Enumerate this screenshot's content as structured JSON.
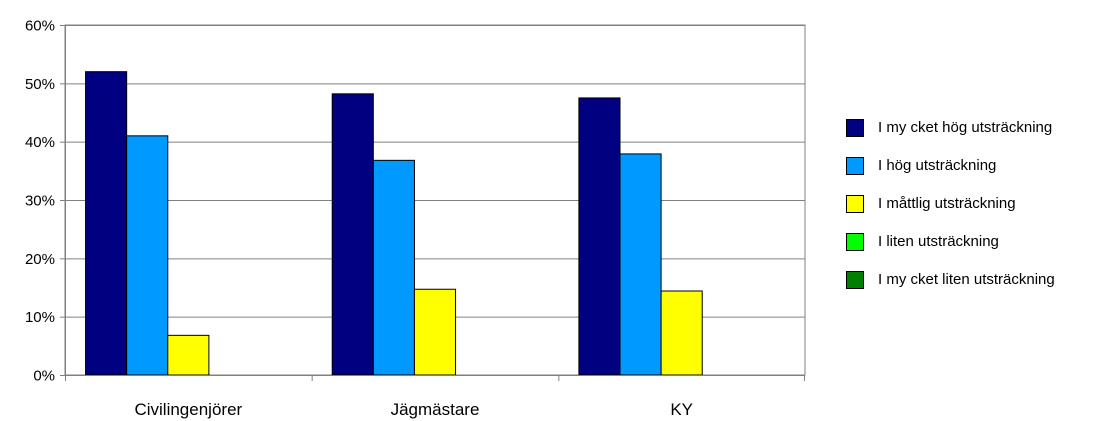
{
  "chart_data": {
    "type": "bar",
    "categories": [
      "Civilingenjörer",
      "Jägmästare",
      "KY"
    ],
    "series": [
      {
        "name": "I my cket hög utsträckning",
        "color": "#000080",
        "values": [
          52,
          48.2,
          47.5
        ]
      },
      {
        "name": "I hög utsträckning",
        "color": "#0099FF",
        "values": [
          41,
          36.8,
          37.9
        ]
      },
      {
        "name": "I måttlig utsträckning",
        "color": "#FFFF00",
        "values": [
          6.8,
          14.7,
          14.4
        ]
      },
      {
        "name": "I liten utsträckning",
        "color": "#00FF00",
        "values": [
          0,
          0,
          0
        ]
      },
      {
        "name": "I my cket liten utsträckning",
        "color": "#008000",
        "values": [
          0,
          0,
          0
        ]
      }
    ],
    "y_ticks": [
      "0%",
      "10%",
      "20%",
      "30%",
      "40%",
      "50%",
      "60%"
    ],
    "ylim": [
      0,
      60
    ],
    "grid": true,
    "legend_position": "right",
    "title": "",
    "xlabel": "",
    "ylabel": ""
  }
}
